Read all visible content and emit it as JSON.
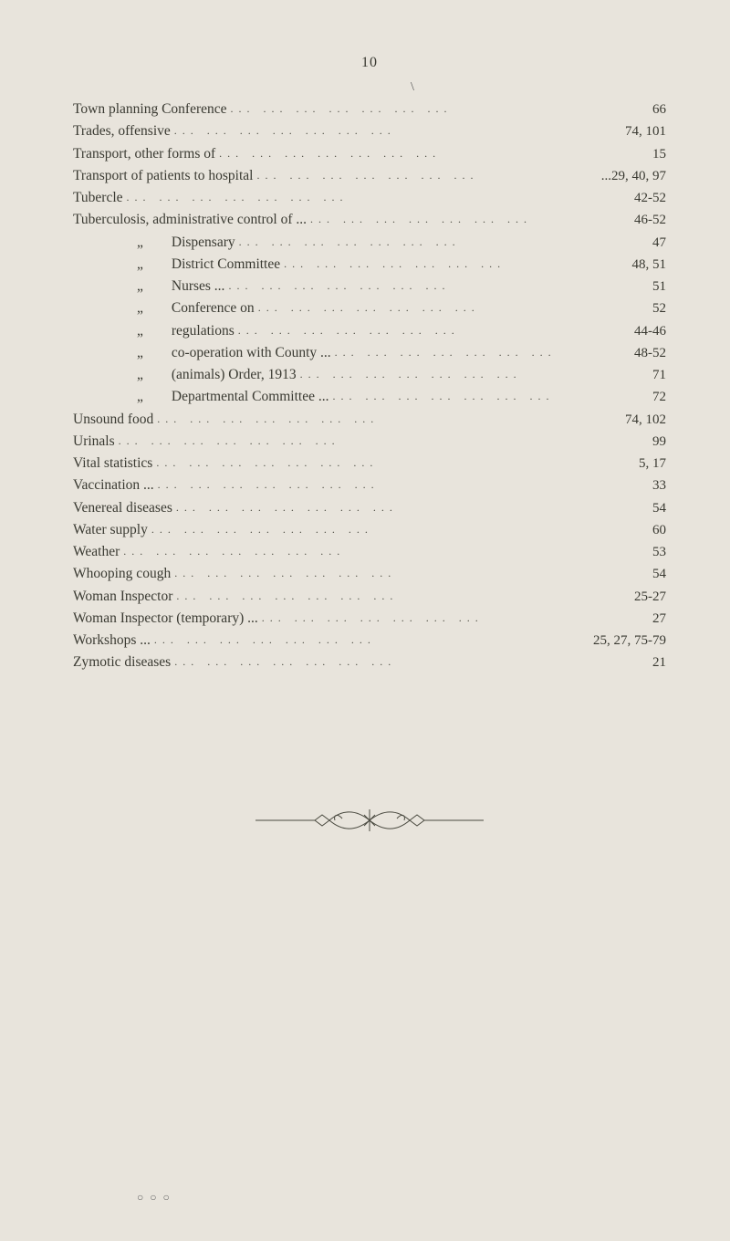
{
  "pageNumber": "10",
  "slash": "\\",
  "entries": [
    {
      "label": "Town planning Conference",
      "sub": false,
      "pages": "66"
    },
    {
      "label": "Trades, offensive",
      "sub": false,
      "pages": "74, 101"
    },
    {
      "label": "Transport, other forms of",
      "sub": false,
      "pages": "15"
    },
    {
      "label": "Transport of patients to hospital",
      "sub": false,
      "pages": "...29, 40, 97"
    },
    {
      "label": "Tubercle",
      "sub": false,
      "pages": "42-52"
    },
    {
      "label": "Tuberculosis, administrative control of ...",
      "sub": false,
      "pages": "46-52"
    },
    {
      "label": "Dispensary",
      "sub": true,
      "pages": "47"
    },
    {
      "label": "District Committee",
      "sub": true,
      "pages": "48, 51"
    },
    {
      "label": "Nurses ...",
      "sub": true,
      "pages": "51"
    },
    {
      "label": "Conference on",
      "sub": true,
      "pages": "52"
    },
    {
      "label": "regulations",
      "sub": true,
      "pages": "44-46"
    },
    {
      "label": "co-operation with County ...",
      "sub": true,
      "pages": "48-52"
    },
    {
      "label": "(animals) Order, 1913",
      "sub": true,
      "pages": "71"
    },
    {
      "label": "Departmental Committee ...",
      "sub": true,
      "pages": "72"
    },
    {
      "label": "Unsound food",
      "sub": false,
      "pages": "74, 102"
    },
    {
      "label": "Urinals",
      "sub": false,
      "pages": "99"
    },
    {
      "label": "Vital statistics",
      "sub": false,
      "pages": "5, 17"
    },
    {
      "label": "Vaccination ...",
      "sub": false,
      "pages": "33"
    },
    {
      "label": "Venereal diseases",
      "sub": false,
      "pages": "54"
    },
    {
      "label": "Water supply",
      "sub": false,
      "pages": "60"
    },
    {
      "label": "Weather",
      "sub": false,
      "pages": "53"
    },
    {
      "label": "Whooping cough",
      "sub": false,
      "pages": "54"
    },
    {
      "label": "Woman Inspector",
      "sub": false,
      "pages": "25-27"
    },
    {
      "label": "Woman Inspector (temporary) ...",
      "sub": false,
      "pages": "27"
    },
    {
      "label": "Workshops ...",
      "sub": false,
      "pages": "25, 27, 75-79"
    },
    {
      "label": "Zymotic diseases",
      "sub": false,
      "pages": "21"
    }
  ],
  "dittoMark": "„",
  "dotsPattern": "...    ...    ...    ...    ...    ...    ...",
  "colors": {
    "background": "#e8e4dc",
    "text": "#3a3a32",
    "dots": "#4a4a40"
  },
  "typography": {
    "bodyFontSize": 15.5,
    "pageNumFontSize": 16,
    "fontFamily": "Georgia, Times New Roman, serif"
  },
  "footerDots": "○ ○ ○"
}
